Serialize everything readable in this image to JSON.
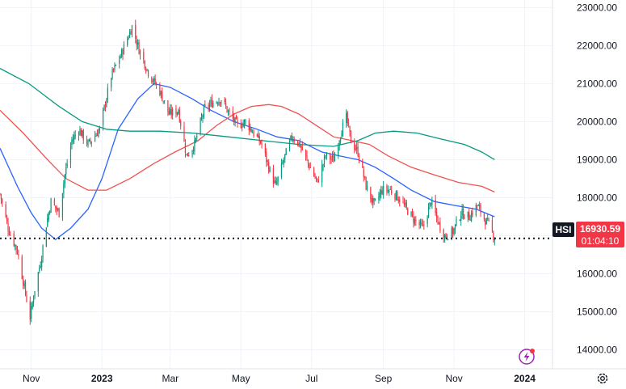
{
  "chart_data": {
    "type": "candlestick",
    "symbol": "HSI",
    "last_price": "16930.59",
    "countdown": "01:04:10",
    "ylim": [
      13500,
      23200
    ],
    "y_ticks": [
      "23000.00",
      "22000.00",
      "21000.00",
      "20000.00",
      "19000.00",
      "18000.00",
      "17000.00",
      "16000.00",
      "15000.00",
      "14000.00"
    ],
    "y_tick_values": [
      23000,
      22000,
      21000,
      20000,
      19000,
      18000,
      17000,
      16000,
      15000,
      14000
    ],
    "x_ticks": [
      {
        "label": "Nov",
        "bold": false,
        "date": "2022-11-01"
      },
      {
        "label": "2023",
        "bold": true,
        "date": "2023-01-01"
      },
      {
        "label": "Mar",
        "bold": false,
        "date": "2023-03-01"
      },
      {
        "label": "May",
        "bold": false,
        "date": "2023-05-01"
      },
      {
        "label": "Jul",
        "bold": false,
        "date": "2023-07-01"
      },
      {
        "label": "Sep",
        "bold": false,
        "date": "2023-09-01"
      },
      {
        "label": "Nov",
        "bold": false,
        "date": "2023-11-01"
      },
      {
        "label": "2024",
        "bold": true,
        "date": "2024-01-01"
      }
    ],
    "xlim": [
      "2022-10-05",
      "2024-01-25"
    ],
    "price_anchors": [
      [
        "2022-10-05",
        18100
      ],
      [
        "2022-10-12",
        17200
      ],
      [
        "2022-10-20",
        16600
      ],
      [
        "2022-10-25",
        15800
      ],
      [
        "2022-10-31",
        14850
      ],
      [
        "2022-11-04",
        15600
      ],
      [
        "2022-11-09",
        16300
      ],
      [
        "2022-11-14",
        17300
      ],
      [
        "2022-11-18",
        17900
      ],
      [
        "2022-11-25",
        17600
      ],
      [
        "2022-11-30",
        18600
      ],
      [
        "2022-12-06",
        19500
      ],
      [
        "2022-12-12",
        19800
      ],
      [
        "2022-12-20",
        19400
      ],
      [
        "2022-12-30",
        19800
      ],
      [
        "2023-01-09",
        21200
      ],
      [
        "2023-01-18",
        21800
      ],
      [
        "2023-01-27",
        22500
      ],
      [
        "2023-02-02",
        21900
      ],
      [
        "2023-02-10",
        21300
      ],
      [
        "2023-02-20",
        20800
      ],
      [
        "2023-02-28",
        20200
      ],
      [
        "2023-03-08",
        20300
      ],
      [
        "2023-03-15",
        19100
      ],
      [
        "2023-03-22",
        19400
      ],
      [
        "2023-03-30",
        20300
      ],
      [
        "2023-04-06",
        20500
      ],
      [
        "2023-04-14",
        20600
      ],
      [
        "2023-04-21",
        20200
      ],
      [
        "2023-04-28",
        19900
      ],
      [
        "2023-05-05",
        20000
      ],
      [
        "2023-05-12",
        19700
      ],
      [
        "2023-05-19",
        19400
      ],
      [
        "2023-05-26",
        18700
      ],
      [
        "2023-05-31",
        18300
      ],
      [
        "2023-06-07",
        19000
      ],
      [
        "2023-06-14",
        19600
      ],
      [
        "2023-06-21",
        19400
      ],
      [
        "2023-06-28",
        18900
      ],
      [
        "2023-07-06",
        18400
      ],
      [
        "2023-07-13",
        19100
      ],
      [
        "2023-07-20",
        19000
      ],
      [
        "2023-07-27",
        19800
      ],
      [
        "2023-07-31",
        20100
      ],
      [
        "2023-08-04",
        19500
      ],
      [
        "2023-08-10",
        19200
      ],
      [
        "2023-08-17",
        18300
      ],
      [
        "2023-08-24",
        17800
      ],
      [
        "2023-08-31",
        18200
      ],
      [
        "2023-09-07",
        18200
      ],
      [
        "2023-09-14",
        18000
      ],
      [
        "2023-09-21",
        17700
      ],
      [
        "2023-09-28",
        17400
      ],
      [
        "2023-10-05",
        17200
      ],
      [
        "2023-10-12",
        17900
      ],
      [
        "2023-10-19",
        17300
      ],
      [
        "2023-10-24",
        16990
      ],
      [
        "2023-10-31",
        17100
      ],
      [
        "2023-11-07",
        17600
      ],
      [
        "2023-11-14",
        17500
      ],
      [
        "2023-11-21",
        17800
      ],
      [
        "2023-11-28",
        17400
      ],
      [
        "2023-12-01",
        17300
      ],
      [
        "2023-12-06",
        16930
      ]
    ],
    "ma_lines": [
      {
        "color": "#2962ff",
        "points": [
          [
            "2022-10-05",
            19300
          ],
          [
            "2022-10-20",
            18300
          ],
          [
            "2022-11-01",
            17600
          ],
          [
            "2022-11-10",
            17200
          ],
          [
            "2022-11-22",
            16900
          ],
          [
            "2022-12-05",
            17200
          ],
          [
            "2022-12-20",
            17700
          ],
          [
            "2023-01-01",
            18500
          ],
          [
            "2023-01-15",
            19800
          ],
          [
            "2023-02-01",
            20600
          ],
          [
            "2023-02-15",
            21000
          ],
          [
            "2023-03-01",
            20900
          ],
          [
            "2023-03-20",
            20600
          ],
          [
            "2023-04-05",
            20300
          ],
          [
            "2023-04-25",
            20000
          ],
          [
            "2023-05-15",
            19800
          ],
          [
            "2023-06-01",
            19600
          ],
          [
            "2023-06-20",
            19500
          ],
          [
            "2023-07-10",
            19200
          ],
          [
            "2023-07-25",
            19100
          ],
          [
            "2023-08-10",
            19000
          ],
          [
            "2023-08-25",
            18800
          ],
          [
            "2023-09-10",
            18500
          ],
          [
            "2023-09-25",
            18200
          ],
          [
            "2023-10-15",
            17900
          ],
          [
            "2023-11-01",
            17800
          ],
          [
            "2023-11-20",
            17700
          ],
          [
            "2023-12-06",
            17500
          ]
        ]
      },
      {
        "color": "#ef5350",
        "points": [
          [
            "2022-10-05",
            20300
          ],
          [
            "2022-10-25",
            19700
          ],
          [
            "2022-11-15",
            19000
          ],
          [
            "2022-12-01",
            18500
          ],
          [
            "2022-12-20",
            18200
          ],
          [
            "2023-01-05",
            18200
          ],
          [
            "2023-01-25",
            18500
          ],
          [
            "2023-02-15",
            18900
          ],
          [
            "2023-03-05",
            19200
          ],
          [
            "2023-03-25",
            19500
          ],
          [
            "2023-04-10",
            19900
          ],
          [
            "2023-04-25",
            20200
          ],
          [
            "2023-05-10",
            20400
          ],
          [
            "2023-05-25",
            20450
          ],
          [
            "2023-06-05",
            20400
          ],
          [
            "2023-06-20",
            20200
          ],
          [
            "2023-07-05",
            19900
          ],
          [
            "2023-07-20",
            19600
          ],
          [
            "2023-08-05",
            19500
          ],
          [
            "2023-08-20",
            19400
          ],
          [
            "2023-09-05",
            19100
          ],
          [
            "2023-09-25",
            18800
          ],
          [
            "2023-10-15",
            18600
          ],
          [
            "2023-11-05",
            18400
          ],
          [
            "2023-11-25",
            18300
          ],
          [
            "2023-12-06",
            18150
          ]
        ]
      },
      {
        "color": "#089981",
        "points": [
          [
            "2022-10-05",
            21400
          ],
          [
            "2022-10-30",
            21000
          ],
          [
            "2022-11-25",
            20400
          ],
          [
            "2022-12-15",
            20000
          ],
          [
            "2023-01-05",
            19800
          ],
          [
            "2023-01-25",
            19750
          ],
          [
            "2023-02-20",
            19750
          ],
          [
            "2023-03-20",
            19700
          ],
          [
            "2023-04-20",
            19600
          ],
          [
            "2023-05-20",
            19500
          ],
          [
            "2023-06-20",
            19400
          ],
          [
            "2023-07-20",
            19350
          ],
          [
            "2023-08-10",
            19500
          ],
          [
            "2023-08-25",
            19700
          ],
          [
            "2023-09-10",
            19750
          ],
          [
            "2023-09-30",
            19700
          ],
          [
            "2023-10-20",
            19550
          ],
          [
            "2023-11-10",
            19400
          ],
          [
            "2023-11-25",
            19200
          ],
          [
            "2023-12-06",
            19000
          ]
        ]
      }
    ],
    "up_color": "#089981",
    "down_color": "#f23645",
    "badge_color": "#f23645",
    "symbol_badge_color": "#131722"
  }
}
